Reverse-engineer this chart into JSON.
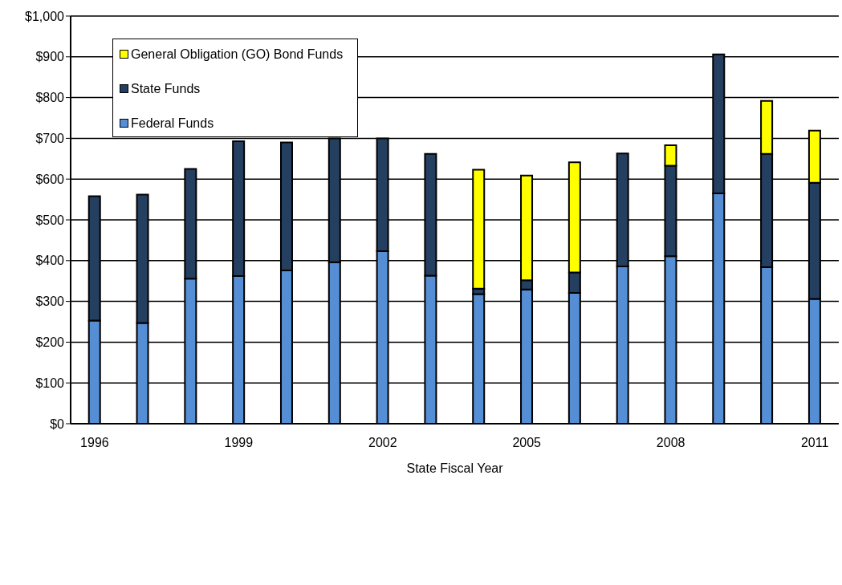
{
  "chart_data": {
    "type": "bar",
    "stacked": true,
    "xlabel": "State Fiscal Year",
    "categories": [
      "1996",
      null,
      null,
      "1999",
      null,
      null,
      "2002",
      null,
      null,
      "2005",
      null,
      null,
      "2008",
      null,
      null,
      "2011"
    ],
    "series": [
      {
        "name": "Federal Funds",
        "color": "#558ed5",
        "values": [
          253,
          247,
          356,
          362,
          376,
          396,
          423,
          363,
          318,
          329,
          321,
          386,
          411,
          565,
          384,
          306
        ]
      },
      {
        "name": "State Funds",
        "color": "#253f60",
        "values": [
          305,
          315,
          269,
          331,
          314,
          304,
          277,
          299,
          13,
          23,
          50,
          277,
          222,
          341,
          278,
          285
        ]
      },
      {
        "name": "General Obligation (GO) Bond Funds",
        "color": "#ffff00",
        "values": [
          null,
          null,
          null,
          null,
          null,
          null,
          null,
          null,
          292,
          257,
          270,
          null,
          50,
          null,
          130,
          128
        ]
      }
    ],
    "ylim": [
      0,
      1000
    ],
    "yticks": [
      {
        "value": 0,
        "label": "$0"
      },
      {
        "value": 100,
        "label": "$100"
      },
      {
        "value": 200,
        "label": "$200"
      },
      {
        "value": 300,
        "label": "$300"
      },
      {
        "value": 400,
        "label": "$400"
      },
      {
        "value": 500,
        "label": "$500"
      },
      {
        "value": 600,
        "label": "$600"
      },
      {
        "value": 700,
        "label": "$700"
      },
      {
        "value": 800,
        "label": "$800"
      },
      {
        "value": 900,
        "label": "$900"
      },
      {
        "value": 1000,
        "label": "$1,000"
      }
    ],
    "grid": "y",
    "legend": "top left"
  }
}
